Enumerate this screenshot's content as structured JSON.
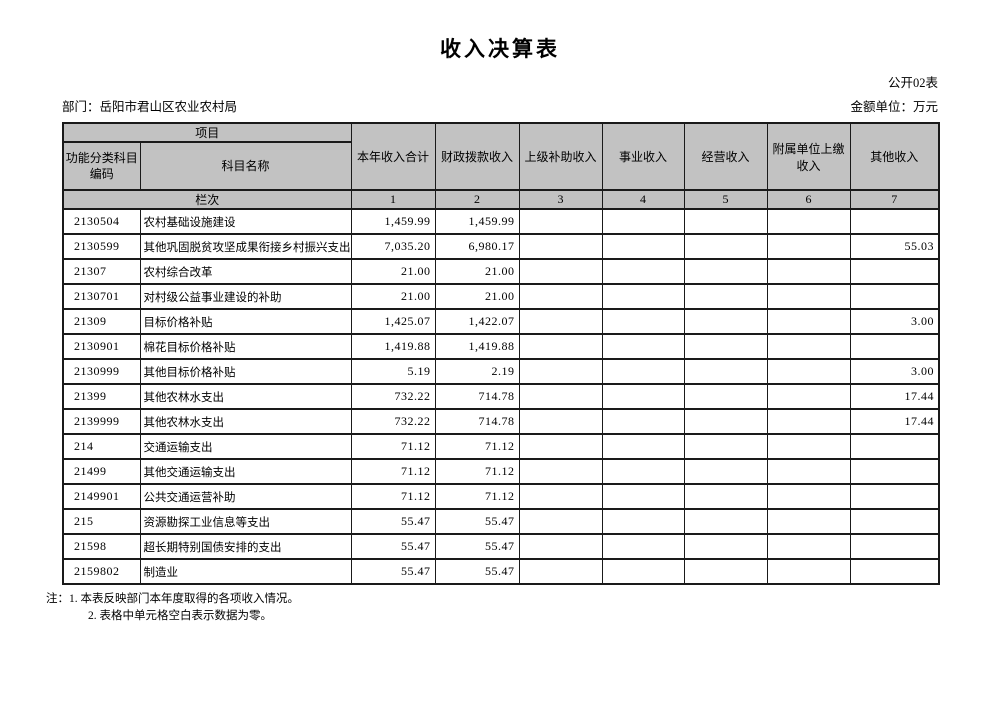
{
  "page": {
    "title": "收入决算表",
    "table_code": "公开02表",
    "department": "部门：岳阳市君山区农业农村局",
    "unit": "金额单位：万元"
  },
  "table": {
    "project_header": "项目",
    "code_header": "功能分类科目编码",
    "name_header": "科目名称",
    "columns": [
      "本年收入合计",
      "财政拨款收入",
      "上级补助收入",
      "事业收入",
      "经营收入",
      "附属单位上缴收入",
      "其他收入"
    ],
    "index_label": "栏次",
    "column_indices": [
      "1",
      "2",
      "3",
      "4",
      "5",
      "6",
      "7"
    ],
    "rows": [
      {
        "code": "2130504",
        "name": "农村基础设施建设",
        "values": [
          "1,459.99",
          "1,459.99",
          "",
          "",
          "",
          "",
          ""
        ]
      },
      {
        "code": "2130599",
        "name": "其他巩固脱贫攻坚成果衔接乡村振兴支出",
        "values": [
          "7,035.20",
          "6,980.17",
          "",
          "",
          "",
          "",
          "55.03"
        ]
      },
      {
        "code": "21307",
        "name": "农村综合改革",
        "values": [
          "21.00",
          "21.00",
          "",
          "",
          "",
          "",
          ""
        ]
      },
      {
        "code": "2130701",
        "name": "对村级公益事业建设的补助",
        "values": [
          "21.00",
          "21.00",
          "",
          "",
          "",
          "",
          ""
        ]
      },
      {
        "code": "21309",
        "name": "目标价格补贴",
        "values": [
          "1,425.07",
          "1,422.07",
          "",
          "",
          "",
          "",
          "3.00"
        ]
      },
      {
        "code": "2130901",
        "name": "棉花目标价格补贴",
        "values": [
          "1,419.88",
          "1,419.88",
          "",
          "",
          "",
          "",
          ""
        ]
      },
      {
        "code": "2130999",
        "name": "其他目标价格补贴",
        "values": [
          "5.19",
          "2.19",
          "",
          "",
          "",
          "",
          "3.00"
        ]
      },
      {
        "code": "21399",
        "name": "其他农林水支出",
        "values": [
          "732.22",
          "714.78",
          "",
          "",
          "",
          "",
          "17.44"
        ]
      },
      {
        "code": "2139999",
        "name": "其他农林水支出",
        "values": [
          "732.22",
          "714.78",
          "",
          "",
          "",
          "",
          "17.44"
        ]
      },
      {
        "code": "214",
        "name": "交通运输支出",
        "values": [
          "71.12",
          "71.12",
          "",
          "",
          "",
          "",
          ""
        ]
      },
      {
        "code": "21499",
        "name": "其他交通运输支出",
        "values": [
          "71.12",
          "71.12",
          "",
          "",
          "",
          "",
          ""
        ]
      },
      {
        "code": "2149901",
        "name": "公共交通运营补助",
        "values": [
          "71.12",
          "71.12",
          "",
          "",
          "",
          "",
          ""
        ]
      },
      {
        "code": "215",
        "name": "资源勘探工业信息等支出",
        "values": [
          "55.47",
          "55.47",
          "",
          "",
          "",
          "",
          ""
        ]
      },
      {
        "code": "21598",
        "name": "超长期特别国债安排的支出",
        "values": [
          "55.47",
          "55.47",
          "",
          "",
          "",
          "",
          ""
        ]
      },
      {
        "code": "2159802",
        "name": "制造业",
        "values": [
          "55.47",
          "55.47",
          "",
          "",
          "",
          "",
          ""
        ]
      }
    ]
  },
  "notes": {
    "line1": "注：1. 本表反映部门本年度取得的各项收入情况。",
    "line2": "2. 表格中单元格空白表示数据为零。"
  },
  "colors": {
    "header_background": "#c2c2c2",
    "border": "#1a1a1a",
    "text": "#000000"
  }
}
